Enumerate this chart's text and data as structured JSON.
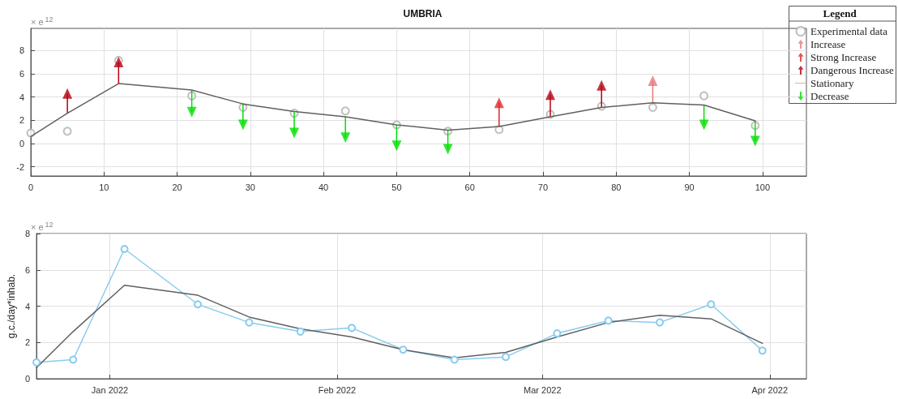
{
  "chart_data": [
    {
      "type": "line",
      "title": "UMBRIA",
      "legend_title": "Legend",
      "legend": "top right",
      "grid": true,
      "annotations": [
        "× e$^{12}$"
      ],
      "xlim": [
        0,
        106
      ],
      "xticks": [
        0,
        10,
        20,
        30,
        40,
        50,
        60,
        70,
        80,
        90,
        100
      ],
      "ylim": [
        -2.8,
        9.9
      ],
      "yticks": [
        -2,
        0,
        2,
        4,
        6,
        8
      ],
      "series": [
        {
          "name": "Experimental data",
          "type": "scatter",
          "marker": "circle",
          "color": "#b0b0b0",
          "x": [
            0,
            5,
            12,
            22,
            29,
            36,
            43,
            50,
            57,
            64,
            71,
            78,
            85,
            92,
            99
          ],
          "values": [
            0.9,
            1.05,
            7.15,
            4.1,
            3.1,
            2.6,
            2.8,
            1.6,
            1.05,
            1.2,
            2.5,
            3.2,
            3.1,
            4.1,
            1.55
          ]
        },
        {
          "marker": "none",
          "color": "#606060",
          "x": [
            0,
            5,
            12,
            22,
            29,
            36,
            43,
            50,
            57,
            64,
            71,
            78,
            85,
            92,
            99
          ],
          "values": [
            0.6,
            2.6,
            5.15,
            4.6,
            3.4,
            2.75,
            2.3,
            1.6,
            1.15,
            1.45,
            2.3,
            3.1,
            3.5,
            3.3,
            1.95
          ]
        },
        {
          "name": "Increase",
          "type": "scatter",
          "marker": "triangle",
          "color": "#e87878",
          "x": [
            85
          ],
          "values": [
            5.4
          ],
          "errors": [
            [
              3.5,
              5.4
            ]
          ]
        },
        {
          "name": "Strong Increase",
          "type": "scatter",
          "marker": "triangle",
          "color": "#e02828",
          "x": [
            64
          ],
          "values": [
            3.5
          ],
          "errors": [
            [
              1.45,
              3.5
            ]
          ]
        },
        {
          "name": "Dangerous Increase",
          "type": "scatter",
          "marker": "triangle",
          "color": "#b80010",
          "x": [
            5,
            12,
            71,
            78
          ],
          "values": [
            4.3,
            7.0,
            4.2,
            5.0
          ],
          "errors": [
            [
              2.6,
              4.3
            ],
            [
              5.15,
              7.0
            ],
            [
              2.3,
              4.2
            ],
            [
              3.1,
              5.0
            ]
          ]
        },
        {
          "name": "Stationary",
          "marker": "none",
          "color": "#f4a070"
        },
        {
          "name": "Decrease",
          "type": "scatter",
          "marker": "triangle",
          "color": "#00e000",
          "x": [
            22,
            29,
            36,
            43,
            50,
            57,
            92,
            99
          ],
          "values": [
            2.7,
            1.6,
            0.9,
            0.5,
            -0.2,
            -0.5,
            1.6,
            0.2
          ],
          "errors": [
            [
              2.7,
              4.6
            ],
            [
              1.6,
              3.4
            ],
            [
              0.9,
              2.75
            ],
            [
              0.5,
              2.3
            ],
            [
              -0.2,
              1.6
            ],
            [
              -0.5,
              1.15
            ],
            [
              1.6,
              3.3
            ],
            [
              0.2,
              1.95
            ]
          ]
        }
      ]
    },
    {
      "type": "line",
      "ylabel": "g.c./day*inhab.",
      "grid": true,
      "annotations": [
        "× e$^{12}$"
      ],
      "xlim": [
        "2021-12-22",
        "2022-04-06"
      ],
      "xticks": [
        {
          "value": "2022-01-01",
          "label": "Jan 2022"
        },
        {
          "value": "2022-02-01",
          "label": "Feb 2022"
        },
        {
          "value": "2022-03-01",
          "label": "Mar 2022"
        },
        {
          "value": "2022-04-01",
          "label": "Apr 2022"
        }
      ],
      "ylim": [
        0,
        8
      ],
      "yticks": [
        0,
        2,
        4,
        6,
        8
      ],
      "x": [
        "2021-12-22",
        "2021-12-27",
        "2022-01-03",
        "2022-01-13",
        "2022-01-20",
        "2022-01-27",
        "2022-02-03",
        "2022-02-10",
        "2022-02-17",
        "2022-02-24",
        "2022-03-03",
        "2022-03-10",
        "2022-03-17",
        "2022-03-24",
        "2022-03-31"
      ],
      "series": [
        {
          "marker": "circle",
          "color": "#88ccee",
          "values": [
            0.9,
            1.05,
            7.15,
            4.1,
            3.1,
            2.6,
            2.8,
            1.6,
            1.05,
            1.2,
            2.5,
            3.2,
            3.1,
            4.1,
            1.55
          ]
        },
        {
          "marker": "none",
          "color": "#606060",
          "values": [
            0.6,
            2.6,
            5.15,
            4.6,
            3.4,
            2.75,
            2.3,
            1.6,
            1.15,
            1.45,
            2.3,
            3.1,
            3.5,
            3.3,
            1.95
          ]
        }
      ]
    }
  ]
}
